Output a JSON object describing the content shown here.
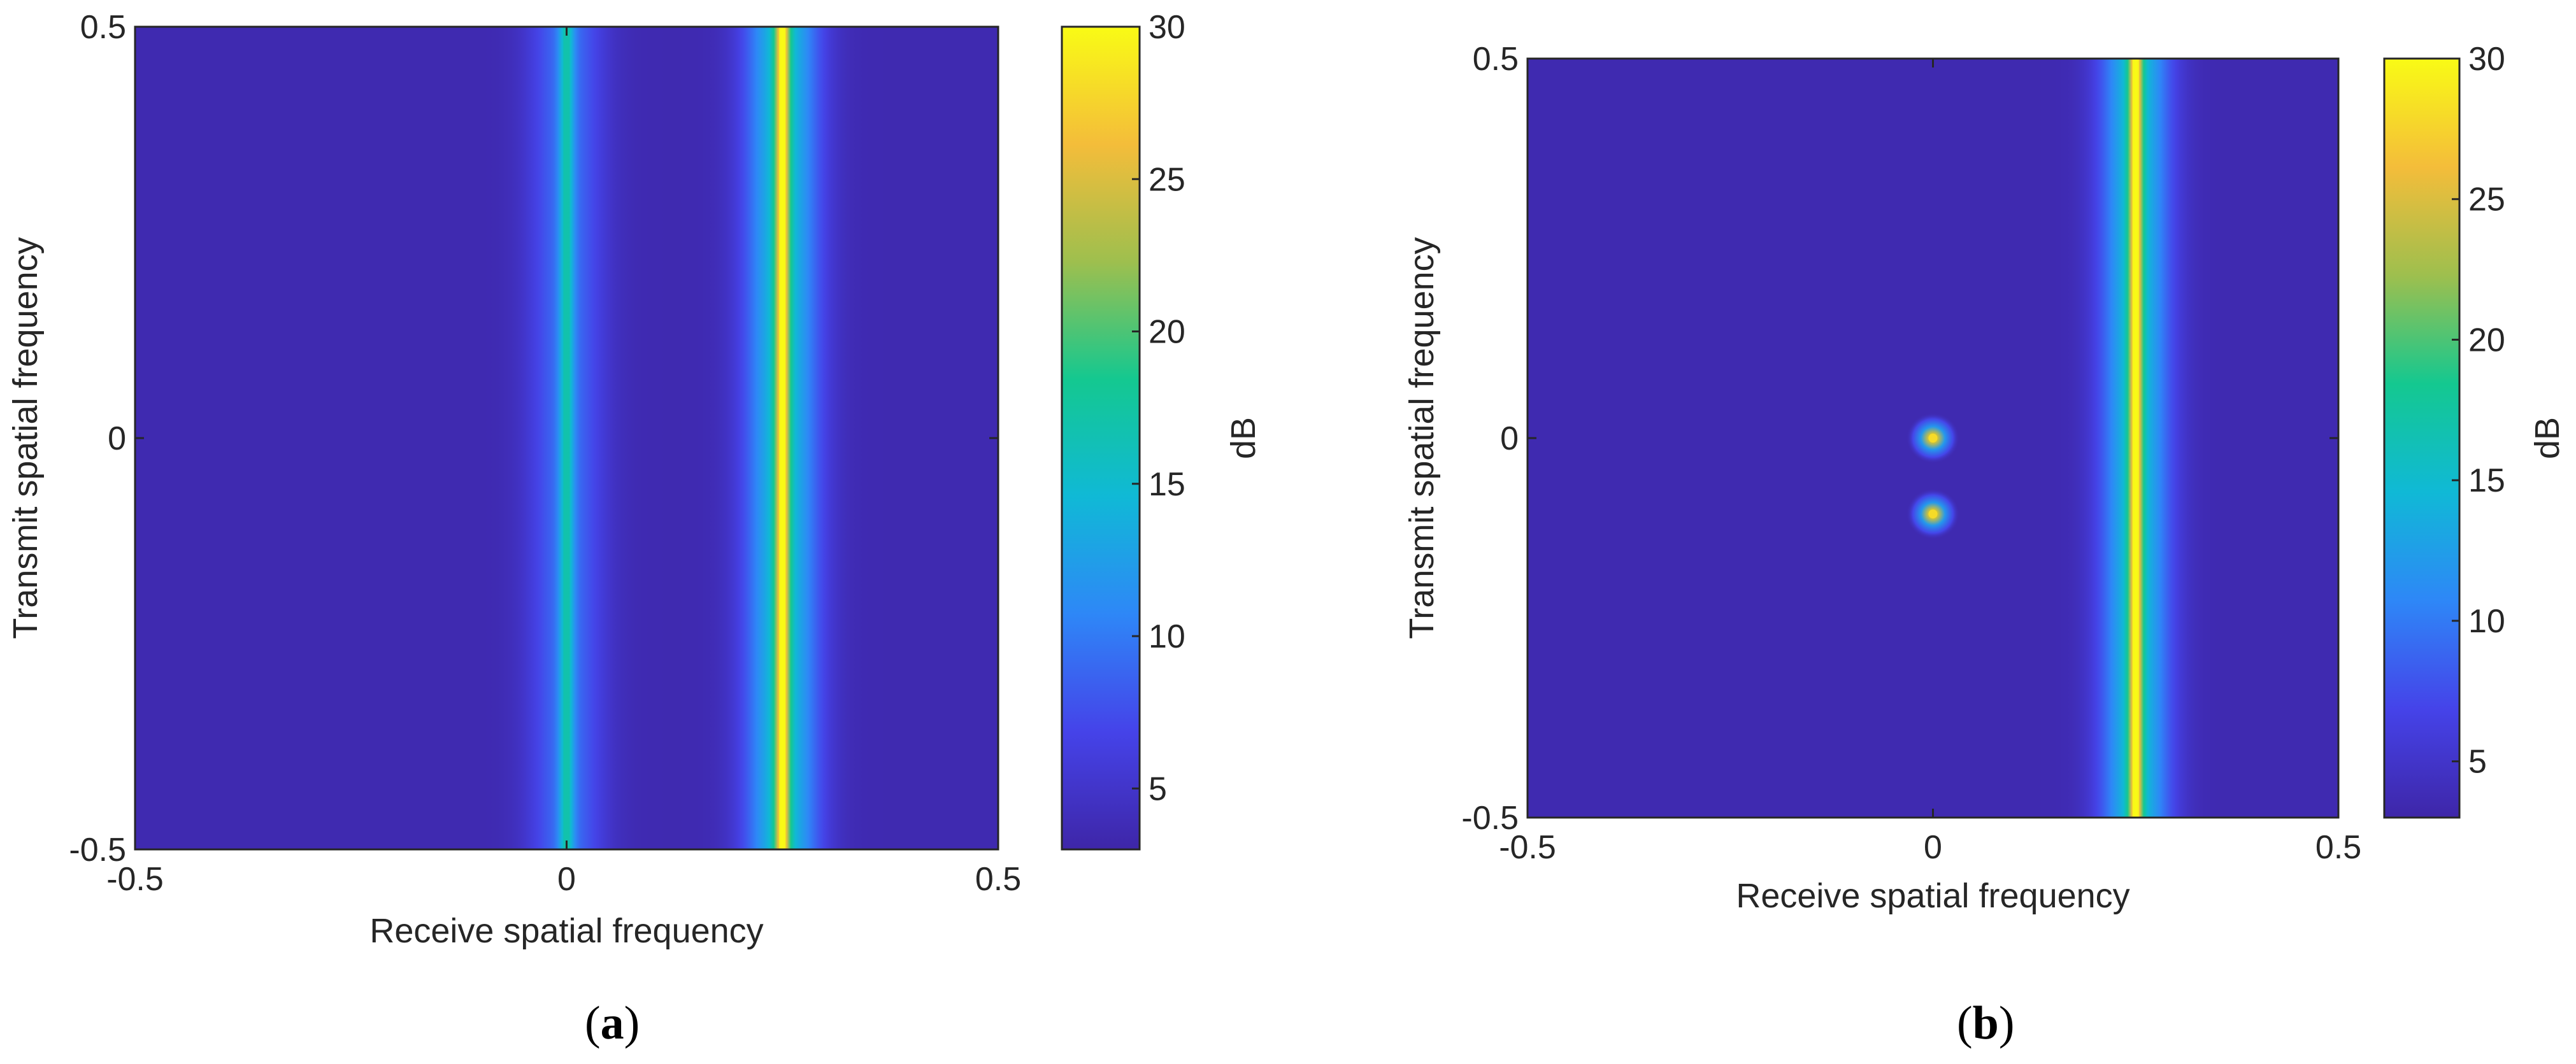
{
  "chart_data": [
    {
      "type": "heatmap",
      "panel_label": "(a)",
      "caption_letter": "a",
      "xlabel": "Receive spatial frequency",
      "ylabel": "Transmit spatial frequency",
      "xlim": [
        -0.5,
        0.5
      ],
      "ylim": [
        -0.5,
        0.5
      ],
      "xticks": [
        "-0.5",
        "0",
        "0.5"
      ],
      "yticks": [
        "-0.5",
        "0",
        "0.5"
      ],
      "colorbar": {
        "label": "dB",
        "clim": [
          3,
          30
        ],
        "ticks": [
          "5",
          "10",
          "15",
          "20",
          "25",
          "30"
        ]
      },
      "background_db": 3.5,
      "ridges": [
        {
          "receive_frequency": 0.0,
          "peak_db": 17,
          "orientation": "vertical"
        },
        {
          "receive_frequency": 0.25,
          "peak_db": 30,
          "orientation": "vertical"
        }
      ],
      "spots": []
    },
    {
      "type": "heatmap",
      "panel_label": "(b)",
      "caption_letter": "b",
      "xlabel": "Receive spatial frequency",
      "ylabel": "Transmit spatial frequency",
      "xlim": [
        -0.5,
        0.5
      ],
      "ylim": [
        -0.5,
        0.5
      ],
      "xticks": [
        "-0.5",
        "0",
        "0.5"
      ],
      "yticks": [
        "-0.5",
        "0",
        "0.5"
      ],
      "colorbar": {
        "label": "dB",
        "clim": [
          3,
          30
        ],
        "ticks": [
          "5",
          "10",
          "15",
          "20",
          "25",
          "30"
        ]
      },
      "background_db": 3.5,
      "ridges": [
        {
          "receive_frequency": 0.25,
          "peak_db": 30,
          "orientation": "vertical"
        }
      ],
      "spots": [
        {
          "receive_frequency": 0.0,
          "transmit_frequency": 0.0,
          "peak_db": 28
        },
        {
          "receive_frequency": 0.0,
          "transmit_frequency": -0.1,
          "peak_db": 28
        }
      ]
    }
  ],
  "colormap_stops": [
    "#3e26a8",
    "#4543e9",
    "#2e87f7",
    "#10b9d6",
    "#14c890",
    "#9ebf4e",
    "#f4bd3a",
    "#f9fb15"
  ]
}
